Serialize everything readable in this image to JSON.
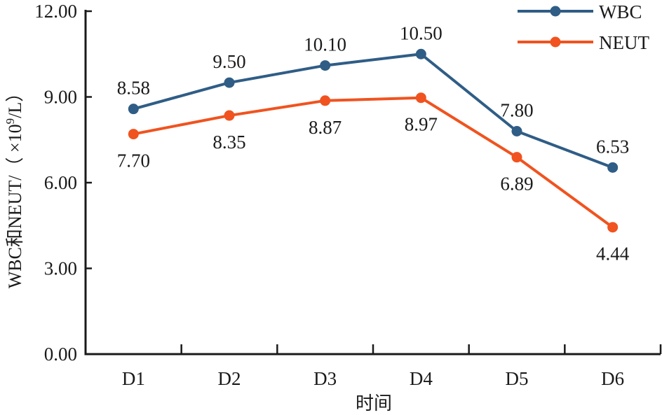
{
  "chart_data": {
    "type": "line",
    "title": "",
    "xlabel": "时间",
    "ylabel": "WBC和NEUT/（×10⁹/L）",
    "ylabel_parts": {
      "main": "WBC和NEUT/（ ×10",
      "sup": "9",
      "tail": "/L）"
    },
    "categories": [
      "D1",
      "D2",
      "D3",
      "D4",
      "D5",
      "D6"
    ],
    "ylim": [
      0,
      12
    ],
    "yticks": [
      0,
      3,
      6,
      9,
      12
    ],
    "ytick_labels": [
      "0.00",
      "3.00",
      "6.00",
      "9.00",
      "12.00"
    ],
    "grid": false,
    "legend": {
      "position": "top-right"
    },
    "series": [
      {
        "name": "WBC",
        "color": "#2f5d86",
        "values": [
          8.58,
          9.5,
          10.1,
          10.5,
          7.8,
          6.53
        ],
        "labels": [
          "8.58",
          "9.50",
          "10.10",
          "10.50",
          "7.80",
          "6.53"
        ],
        "label_side": [
          "above",
          "above",
          "above",
          "above",
          "above",
          "above"
        ]
      },
      {
        "name": "NEUT",
        "color": "#f0531f",
        "values": [
          7.7,
          8.35,
          8.87,
          8.97,
          6.89,
          4.44
        ],
        "labels": [
          "7.70",
          "8.35",
          "8.87",
          "8.97",
          "6.89",
          "4.44"
        ],
        "label_side": [
          "below",
          "below",
          "below",
          "below",
          "below",
          "below"
        ]
      }
    ]
  }
}
